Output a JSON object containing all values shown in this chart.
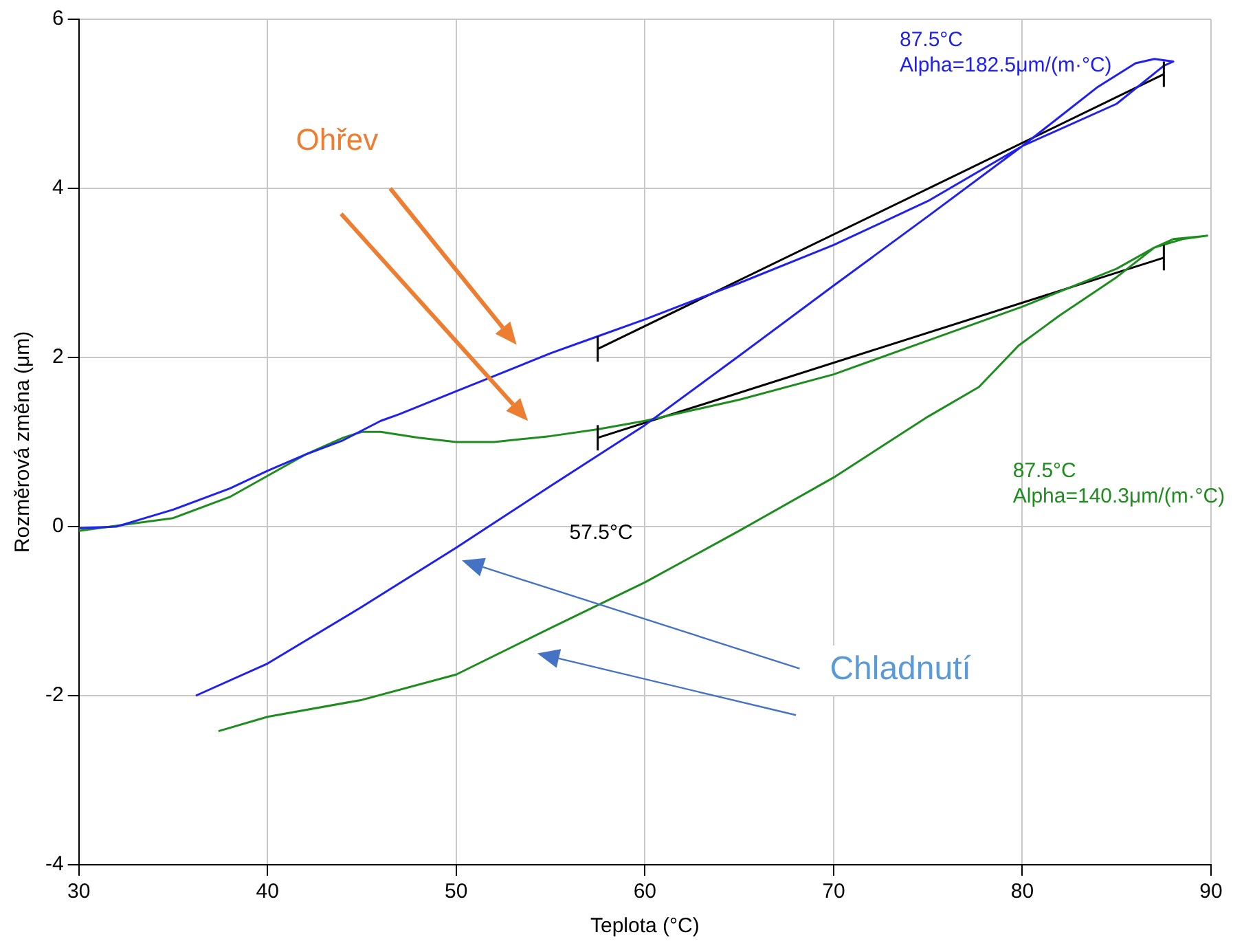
{
  "chart_data": {
    "type": "line",
    "xlabel": "Teplota (°C)",
    "ylabel": "Rozměrová změna (μm)",
    "xlim": [
      30,
      90
    ],
    "xticks": [
      30,
      40,
      50,
      60,
      70,
      80,
      90
    ],
    "ylim": [
      -4,
      6
    ],
    "yticks": [
      -4,
      -2,
      0,
      2,
      4,
      6
    ],
    "grid": true,
    "legend": false,
    "marker": "none",
    "line_style": "solid",
    "series": [
      {
        "color": "#2020f0",
        "x": [
          30,
          32,
          35,
          38,
          40,
          42,
          44,
          46,
          47,
          50,
          52,
          55,
          57.5,
          60,
          65,
          70,
          75,
          80,
          85,
          87.5,
          88,
          87,
          86,
          84,
          82,
          80,
          75,
          70,
          65,
          60,
          55,
          50,
          45,
          40,
          36.2
        ],
        "values": [
          -0.02,
          0,
          0.2,
          0.45,
          0.66,
          0.85,
          1.02,
          1.25,
          1.33,
          1.6,
          1.78,
          2.05,
          2.25,
          2.45,
          2.88,
          3.33,
          3.85,
          4.5,
          5,
          5.45,
          5.5,
          5.53,
          5.48,
          5.2,
          4.85,
          4.5,
          3.67,
          2.85,
          2.02,
          1.2,
          0.48,
          -0.25,
          -0.95,
          -1.62,
          -2
        ]
      },
      {
        "color": "#1e8c1e",
        "x": [
          30,
          35,
          38,
          40,
          42,
          44,
          45,
          46,
          48,
          50,
          52,
          55,
          57.5,
          60,
          65,
          70,
          75,
          80,
          85,
          87,
          88,
          89.8,
          88.5,
          87,
          85,
          82,
          79.8,
          77.7,
          75,
          70,
          65,
          60,
          55,
          50,
          45,
          40,
          37.4
        ],
        "values": [
          -0.05,
          0.1,
          0.35,
          0.6,
          0.85,
          1.05,
          1.12,
          1.12,
          1.05,
          1,
          1,
          1.07,
          1.15,
          1.25,
          1.5,
          1.8,
          2.2,
          2.6,
          3.05,
          3.3,
          3.4,
          3.44,
          3.4,
          3.3,
          2.95,
          2.5,
          2.14,
          1.65,
          1.3,
          0.58,
          -0.05,
          -0.66,
          -1.2,
          -1.75,
          -2.05,
          -2.25,
          -2.42
        ]
      },
      {
        "color": "#000000",
        "x": [
          57.5,
          87.5
        ],
        "values": [
          2.1,
          5.35
        ],
        "errors": [
          0.15,
          0.15
        ]
      },
      {
        "color": "#000000",
        "x": [
          57.5,
          87.5
        ],
        "values": [
          1.05,
          3.18
        ],
        "errors": [
          0.15,
          0.15
        ]
      }
    ],
    "annotations": [
      "87.5°C",
      "Alpha=182.5μm/(m·°C)",
      "87.5°C",
      "Alpha=140.3μm/(m·°C)",
      "57.5°C",
      "Ohřev",
      "Chladnutí"
    ]
  }
}
